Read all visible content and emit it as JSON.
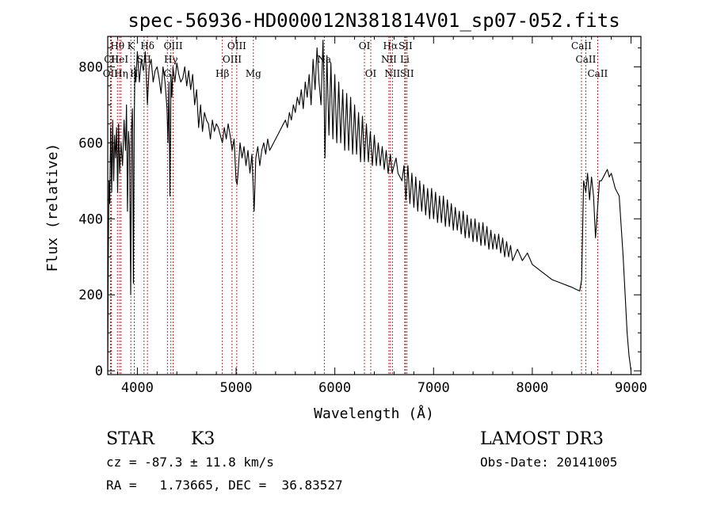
{
  "chart_data": {
    "type": "line",
    "title": "spec-56936-HD000012N381814V01_sp07-052.fits",
    "xlabel": "Wavelength (Å)",
    "ylabel": "Flux (relative)",
    "xlim": [
      3700,
      9100
    ],
    "ylim": [
      -10,
      880
    ],
    "xticks": [
      4000,
      5000,
      6000,
      7000,
      8000,
      9000
    ],
    "yticks": [
      0,
      200,
      400,
      600,
      800
    ],
    "grid": false,
    "series": [
      {
        "color": "#000000",
        "x": [
          3700,
          3705,
          3712,
          3720,
          3730,
          3740,
          3750,
          3760,
          3770,
          3780,
          3790,
          3800,
          3810,
          3820,
          3835,
          3850,
          3865,
          3880,
          3890,
          3900,
          3910,
          3920,
          3933,
          3940,
          3950,
          3960,
          3968,
          3975,
          3985,
          4000,
          4020,
          4040,
          4060,
          4080,
          4102,
          4120,
          4140,
          4160,
          4180,
          4200,
          4220,
          4240,
          4260,
          4280,
          4300,
          4310,
          4320,
          4330,
          4340,
          4350,
          4360,
          4380,
          4400,
          4420,
          4440,
          4460,
          4480,
          4500,
          4520,
          4540,
          4560,
          4580,
          4600,
          4620,
          4640,
          4660,
          4680,
          4700,
          4720,
          4740,
          4760,
          4780,
          4800,
          4820,
          4840,
          4861,
          4880,
          4900,
          4920,
          4940,
          4960,
          4980,
          5000,
          5010,
          5020,
          5040,
          5060,
          5080,
          5100,
          5120,
          5140,
          5160,
          5183,
          5200,
          5220,
          5240,
          5260,
          5280,
          5300,
          5320,
          5340,
          5360,
          5380,
          5400,
          5420,
          5440,
          5460,
          5480,
          5500,
          5520,
          5540,
          5560,
          5580,
          5600,
          5620,
          5640,
          5660,
          5680,
          5700,
          5720,
          5740,
          5760,
          5780,
          5800,
          5820,
          5840,
          5860,
          5880,
          5890,
          5900,
          5920,
          5940,
          5960,
          5980,
          6000,
          6020,
          6040,
          6060,
          6080,
          6100,
          6120,
          6140,
          6160,
          6180,
          6200,
          6220,
          6240,
          6260,
          6280,
          6300,
          6320,
          6340,
          6360,
          6380,
          6400,
          6420,
          6440,
          6460,
          6480,
          6500,
          6520,
          6540,
          6563,
          6580,
          6600,
          6620,
          6640,
          6660,
          6680,
          6700,
          6720,
          6740,
          6760,
          6780,
          6800,
          6820,
          6840,
          6860,
          6880,
          6900,
          6920,
          6940,
          6960,
          6980,
          7000,
          7020,
          7040,
          7060,
          7080,
          7100,
          7120,
          7140,
          7160,
          7180,
          7200,
          7220,
          7240,
          7260,
          7280,
          7300,
          7320,
          7340,
          7360,
          7380,
          7400,
          7420,
          7440,
          7460,
          7480,
          7500,
          7520,
          7540,
          7560,
          7580,
          7600,
          7620,
          7640,
          7660,
          7680,
          7700,
          7720,
          7740,
          7760,
          7780,
          7800,
          7850,
          7900,
          7950,
          8000,
          8050,
          8100,
          8150,
          8200,
          8250,
          8300,
          8350,
          8400,
          8440,
          8480,
          8500,
          8520,
          8542,
          8560,
          8580,
          8600,
          8620,
          8640,
          8662,
          8680,
          8700,
          8720,
          8740,
          8760,
          8780,
          8800,
          8820,
          8840,
          8860,
          8880,
          8900,
          8920,
          8940,
          8960,
          8980,
          9000
        ],
        "values": [
          0,
          255,
          500,
          440,
          640,
          470,
          660,
          500,
          620,
          560,
          640,
          470,
          650,
          520,
          600,
          540,
          660,
          580,
          700,
          420,
          630,
          590,
          200,
          630,
          690,
          230,
          640,
          800,
          760,
          840,
          760,
          820,
          790,
          840,
          700,
          800,
          820,
          760,
          790,
          800,
          770,
          730,
          800,
          760,
          690,
          600,
          760,
          460,
          780,
          720,
          800,
          760,
          810,
          780,
          760,
          770,
          800,
          750,
          790,
          740,
          780,
          700,
          740,
          640,
          700,
          630,
          680,
          660,
          650,
          610,
          660,
          630,
          650,
          640,
          620,
          600,
          640,
          610,
          650,
          620,
          580,
          610,
          500,
          490,
          520,
          600,
          560,
          590,
          540,
          580,
          520,
          570,
          420,
          560,
          590,
          540,
          580,
          600,
          570,
          610,
          580,
          590,
          600,
          610,
          620,
          630,
          640,
          650,
          660,
          640,
          680,
          660,
          700,
          680,
          720,
          700,
          740,
          690,
          760,
          720,
          780,
          700,
          820,
          740,
          850,
          760,
          700,
          870,
          760,
          560,
          830,
          620,
          810,
          610,
          780,
          600,
          760,
          600,
          740,
          580,
          730,
          580,
          720,
          570,
          700,
          570,
          680,
          550,
          670,
          550,
          650,
          550,
          630,
          540,
          620,
          540,
          600,
          540,
          590,
          530,
          580,
          520,
          570,
          520,
          540,
          560,
          520,
          510,
          500,
          540,
          450,
          540,
          440,
          520,
          430,
          510,
          420,
          500,
          420,
          490,
          410,
          480,
          400,
          480,
          400,
          470,
          390,
          460,
          390,
          460,
          380,
          450,
          380,
          440,
          370,
          430,
          370,
          420,
          360,
          420,
          350,
          410,
          350,
          400,
          340,
          400,
          340,
          390,
          330,
          390,
          330,
          380,
          320,
          370,
          320,
          360,
          320,
          360,
          310,
          350,
          300,
          340,
          300,
          330,
          290,
          320,
          290,
          310,
          280,
          270,
          260,
          250,
          240,
          235,
          230,
          225,
          220,
          215,
          210,
          240,
          500,
          470,
          520,
          450,
          510,
          460,
          350,
          430,
          500,
          500,
          510,
          520,
          530,
          510,
          520,
          500,
          480,
          470,
          460,
          380,
          300,
          200,
          100,
          40,
          0
        ]
      }
    ],
    "line_markers": [
      {
        "label": "Hθ",
        "wl": 3798,
        "row": 0
      },
      {
        "label": "CII",
        "wl": 3737,
        "row": 1
      },
      {
        "label": "HeI",
        "wl": 3820,
        "row": 1
      },
      {
        "label": "OII",
        "wl": 3727,
        "row": 2
      },
      {
        "label": "Hη",
        "wl": 3835,
        "row": 2
      },
      {
        "label": "K",
        "wl": 3934,
        "row": 0
      },
      {
        "label": "SII",
        "wl": 4068,
        "row": 1
      },
      {
        "label": "H",
        "wl": 3968,
        "row": 2
      },
      {
        "label": "Hδ",
        "wl": 4102,
        "row": 0
      },
      {
        "label": "OIII",
        "wl": 4363,
        "row": 0
      },
      {
        "label": "Hγ",
        "wl": 4340,
        "row": 1
      },
      {
        "label": "G",
        "wl": 4304,
        "row": 2
      },
      {
        "label": "OIII",
        "wl": 5007,
        "row": 0
      },
      {
        "label": "OIII",
        "wl": 4959,
        "row": 1
      },
      {
        "label": "Hβ",
        "wl": 4861,
        "row": 2
      },
      {
        "label": "Mg",
        "wl": 5175,
        "row": 2
      },
      {
        "label": "Na",
        "wl": 5893,
        "row": 1
      },
      {
        "label": "OI",
        "wl": 6300,
        "row": 0
      },
      {
        "label": "OI",
        "wl": 6364,
        "row": 2
      },
      {
        "label": "Hα",
        "wl": 6563,
        "row": 0
      },
      {
        "label": "NII",
        "wl": 6548,
        "row": 1
      },
      {
        "label": "NII",
        "wl": 6583,
        "row": 2
      },
      {
        "label": "SII",
        "wl": 6716,
        "row": 0
      },
      {
        "label": "Li",
        "wl": 6708,
        "row": 1
      },
      {
        "label": "SII",
        "wl": 6731,
        "row": 2
      },
      {
        "label": "CaII",
        "wl": 8498,
        "row": 0
      },
      {
        "label": "CaII",
        "wl": 8542,
        "row": 1
      },
      {
        "label": "CaII",
        "wl": 8662,
        "row": 2
      }
    ],
    "marker_color": "#a00000"
  },
  "info": {
    "class_label": "STAR",
    "subclass": "K3",
    "survey": "LAMOST DR3",
    "cz": "cz = -87.3 ± 11.8 km/s",
    "obs_date": "Obs-Date: 20141005",
    "radec": "RA =   1.73665, DEC =  36.83527"
  }
}
